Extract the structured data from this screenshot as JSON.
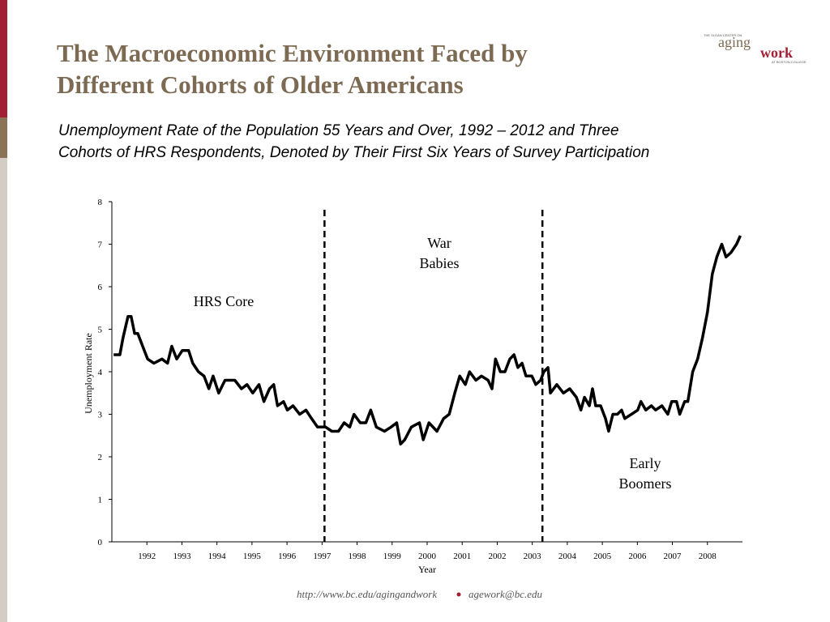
{
  "header": {
    "title": [
      "The Macroeconomic Environment Faced by",
      "Different Cohorts of Older Americans"
    ],
    "subtitle": [
      "Unemployment Rate of the Population 55 Years and Over, 1992 – 2012 and Three",
      "Cohorts of HRS Respondents, Denoted by Their First Six Years of Survey Participation"
    ]
  },
  "logo": {
    "top": "THE SLOAN CENTER ON",
    "aging": "aging",
    "work": "work",
    "bottom": "AT BOSTON COLLEGE"
  },
  "footer": {
    "url": "http://www.bc.edu/agingandwork",
    "email": "agework@bc.edu"
  },
  "chart_data": {
    "type": "line",
    "xlabel": "Year",
    "ylabel": "Unemployment Rate",
    "color": "#000000",
    "xlim": [
      1991,
      2009
    ],
    "xticks": [
      1992,
      1993,
      1994,
      1995,
      1996,
      1997,
      1998,
      1999,
      2000,
      2001,
      2002,
      2003,
      2004,
      2005,
      2006,
      2007,
      2008
    ],
    "ylim": [
      0,
      8
    ],
    "yticks": [
      0,
      1,
      2,
      3,
      4,
      5,
      6,
      7,
      8
    ],
    "reference_lines_x": [
      1997.07,
      2003.29
    ],
    "annotations": [
      [
        "HRS Core"
      ],
      [
        "War",
        "Babies"
      ],
      [
        "Early",
        "Boomers"
      ]
    ],
    "x": [
      1991.05,
      1991.23,
      1991.32,
      1991.46,
      1991.55,
      1991.65,
      1991.74,
      1991.88,
      1992.02,
      1992.2,
      1992.43,
      1992.59,
      1992.71,
      1992.85,
      1993.01,
      1993.19,
      1993.31,
      1993.47,
      1993.63,
      1993.77,
      1993.89,
      1994.05,
      1994.23,
      1994.51,
      1994.7,
      1994.86,
      1995.02,
      1995.2,
      1995.34,
      1995.5,
      1995.62,
      1995.73,
      1995.9,
      1996.01,
      1996.17,
      1996.36,
      1996.54,
      1996.7,
      1996.87,
      1997.1,
      1997.28,
      1997.47,
      1997.63,
      1997.79,
      1997.91,
      1998.09,
      1998.25,
      1998.39,
      1998.55,
      1998.78,
      1998.97,
      1999.13,
      1999.24,
      1999.36,
      1999.55,
      1999.78,
      1999.89,
      2000.05,
      2000.28,
      2000.47,
      2000.63,
      2000.79,
      2000.93,
      2001.09,
      2001.21,
      2001.39,
      2001.55,
      2001.74,
      2001.85,
      2001.95,
      2002.09,
      2002.22,
      2002.36,
      2002.48,
      2002.59,
      2002.71,
      2002.82,
      2002.99,
      2003.1,
      2003.24,
      2003.33,
      2003.45,
      2003.52,
      2003.7,
      2003.89,
      2004.07,
      2004.26,
      2004.39,
      2004.49,
      2004.63,
      2004.72,
      2004.81,
      2004.95,
      2005.09,
      2005.18,
      2005.3,
      2005.43,
      2005.55,
      2005.64,
      2005.83,
      2006.01,
      2006.1,
      2006.24,
      2006.4,
      2006.52,
      2006.7,
      2006.87,
      2006.98,
      2007.12,
      2007.21,
      2007.35,
      2007.44,
      2007.58,
      2007.72,
      2007.86,
      2008.0,
      2008.14,
      2008.27,
      2008.41,
      2008.53,
      2008.67,
      2008.83,
      2008.94
    ],
    "values": [
      4.4,
      4.4,
      4.8,
      5.3,
      5.3,
      4.9,
      4.9,
      4.6,
      4.3,
      4.2,
      4.3,
      4.2,
      4.6,
      4.3,
      4.5,
      4.5,
      4.2,
      4.0,
      3.9,
      3.6,
      3.9,
      3.5,
      3.8,
      3.8,
      3.6,
      3.7,
      3.5,
      3.7,
      3.3,
      3.6,
      3.7,
      3.2,
      3.3,
      3.1,
      3.2,
      3.0,
      3.1,
      2.9,
      2.7,
      2.7,
      2.6,
      2.6,
      2.8,
      2.7,
      3.0,
      2.8,
      2.8,
      3.1,
      2.7,
      2.6,
      2.7,
      2.8,
      2.3,
      2.4,
      2.7,
      2.8,
      2.4,
      2.8,
      2.6,
      2.9,
      3.0,
      3.5,
      3.9,
      3.7,
      4.0,
      3.8,
      3.9,
      3.8,
      3.6,
      4.3,
      4.0,
      4.0,
      4.3,
      4.4,
      4.1,
      4.2,
      3.9,
      3.9,
      3.7,
      3.8,
      4.0,
      4.1,
      3.5,
      3.7,
      3.5,
      3.6,
      3.4,
      3.1,
      3.4,
      3.2,
      3.6,
      3.2,
      3.2,
      2.9,
      2.6,
      3.0,
      3.0,
      3.1,
      2.9,
      3.0,
      3.1,
      3.3,
      3.1,
      3.2,
      3.1,
      3.2,
      3.0,
      3.3,
      3.3,
      3.0,
      3.3,
      3.3,
      4.0,
      4.3,
      4.8,
      5.4,
      6.3,
      6.7,
      7.0,
      6.7,
      6.8,
      7.0,
      7.2
    ]
  }
}
